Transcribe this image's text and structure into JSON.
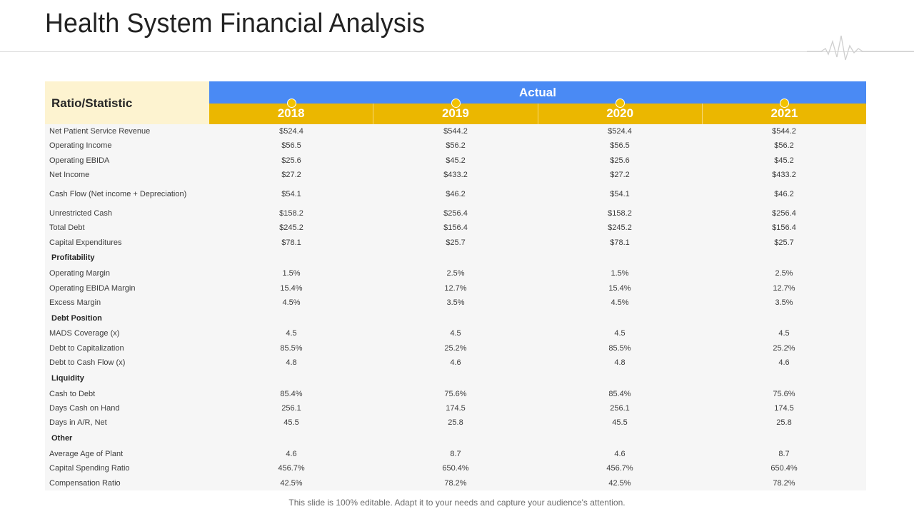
{
  "title": "Health System Financial Analysis",
  "table": {
    "corner_label": "Ratio/Statistic",
    "group_label": "Actual",
    "years": [
      "2018",
      "2019",
      "2020",
      "2021"
    ],
    "rows": [
      {
        "type": "data",
        "label": "Net Patient Service Revenue",
        "values": [
          "$524.4",
          "$544.2",
          "$524.4",
          "$544.2"
        ]
      },
      {
        "type": "data",
        "label": "Operating Income",
        "values": [
          "$56.5",
          "$56.2",
          "$56.5",
          "$56.2"
        ]
      },
      {
        "type": "data",
        "label": "Operating EBIDA",
        "values": [
          "$25.6",
          "$45.2",
          "$25.6",
          "$45.2"
        ]
      },
      {
        "type": "data",
        "label": "Net Income",
        "values": [
          "$27.2",
          "$433.2",
          "$27.2",
          "$433.2"
        ]
      },
      {
        "type": "data",
        "label": "Cash Flow (Net income + Depreciation)",
        "values": [
          "$54.1",
          "$46.2",
          "$54.1",
          "$46.2"
        ]
      },
      {
        "type": "data",
        "label": "Unrestricted Cash",
        "values": [
          "$158.2",
          "$256.4",
          "$158.2",
          "$256.4"
        ]
      },
      {
        "type": "data",
        "label": "Total Debt",
        "values": [
          "$245.2",
          "$156.4",
          "$245.2",
          "$156.4"
        ]
      },
      {
        "type": "data",
        "label": "Capital Expenditures",
        "values": [
          "$78.1",
          "$25.7",
          "$78.1",
          "$25.7"
        ]
      },
      {
        "type": "section",
        "label": "Profitability",
        "values": []
      },
      {
        "type": "data",
        "label": "Operating Margin",
        "values": [
          "1.5%",
          "2.5%",
          "1.5%",
          "2.5%"
        ]
      },
      {
        "type": "data",
        "label": "Operating EBIDA Margin",
        "values": [
          "15.4%",
          "12.7%",
          "15.4%",
          "12.7%"
        ]
      },
      {
        "type": "data",
        "label": "Excess Margin",
        "values": [
          "4.5%",
          "3.5%",
          "4.5%",
          "3.5%"
        ]
      },
      {
        "type": "section",
        "label": "Debt Position",
        "values": []
      },
      {
        "type": "data",
        "label": "MADS Coverage (x)",
        "values": [
          "4.5",
          "4.5",
          "4.5",
          "4.5"
        ]
      },
      {
        "type": "data",
        "label": "Debt to Capitalization",
        "values": [
          "85.5%",
          "25.2%",
          "85.5%",
          "25.2%"
        ]
      },
      {
        "type": "data",
        "label": "Debt to Cash Flow (x)",
        "values": [
          "4.8",
          "4.6",
          "4.8",
          "4.6"
        ]
      },
      {
        "type": "section",
        "label": "Liquidity",
        "values": []
      },
      {
        "type": "data",
        "label": "Cash to Debt",
        "values": [
          "85.4%",
          "75.6%",
          "85.4%",
          "75.6%"
        ]
      },
      {
        "type": "data",
        "label": "Days Cash on Hand",
        "values": [
          "256.1",
          "174.5",
          "256.1",
          "174.5"
        ]
      },
      {
        "type": "data",
        "label": "Days in A/R, Net",
        "values": [
          "45.5",
          "25.8",
          "45.5",
          "25.8"
        ]
      },
      {
        "type": "section",
        "label": "Other",
        "values": []
      },
      {
        "type": "data",
        "label": "Average Age of Plant",
        "values": [
          "4.6",
          "8.7",
          "4.6",
          "8.7"
        ]
      },
      {
        "type": "data",
        "label": "Capital Spending Ratio",
        "values": [
          "456.7%",
          "650.4%",
          "456.7%",
          "650.4%"
        ]
      },
      {
        "type": "data",
        "label": "Compensation Ratio",
        "values": [
          "42.5%",
          "78.2%",
          "42.5%",
          "78.2%"
        ]
      }
    ]
  },
  "footer": "This slide is 100% editable. Adapt it to your needs and capture your audience's attention.",
  "colors": {
    "header_blue": "#4a8af4",
    "year_gold": "#ebb700",
    "corner_cream": "#fdf3d0",
    "body_grey": "#f6f6f6"
  },
  "icons": [
    "heartbeat-line-icon",
    "year-marker-dot-icon"
  ]
}
